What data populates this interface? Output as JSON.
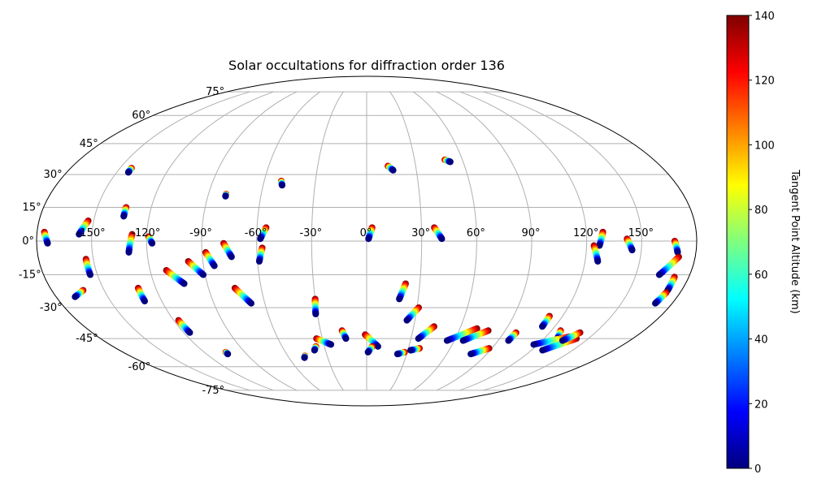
{
  "chart_data": {
    "type": "scatter",
    "projection": "mollweide",
    "title": "Solar occultations for diffraction order 136",
    "lon_tick_labels": [
      "-150°",
      "-120°",
      "-90°",
      "-60°",
      "-30°",
      "0°",
      "30°",
      "60°",
      "90°",
      "120°",
      "150°"
    ],
    "lon_ticks": [
      -150,
      -120,
      -90,
      -60,
      -30,
      0,
      30,
      60,
      90,
      120,
      150
    ],
    "lat_tick_labels": [
      "-75°",
      "-60°",
      "-45°",
      "-30°",
      "-15°",
      "0°",
      "15°",
      "30°",
      "45°",
      "60°",
      "75°"
    ],
    "lat_ticks": [
      -75,
      -60,
      -45,
      -30,
      -15,
      0,
      15,
      30,
      45,
      60,
      75
    ],
    "grid": true,
    "colorbar": {
      "label": "Tangent Point Altitude (km)",
      "range": [
        0,
        140
      ],
      "ticks": [
        0,
        20,
        40,
        60,
        80,
        100,
        120,
        140
      ],
      "tick_labels": [
        "0",
        "20",
        "40",
        "60",
        "80",
        "100",
        "120",
        "140"
      ],
      "colormap": "jet"
    },
    "occultation_tracks": [
      {
        "start": [
          -176,
          4
        ],
        "end": [
          -174,
          -1
        ]
      },
      {
        "start": [
          -153,
          9
        ],
        "end": [
          -157,
          3
        ]
      },
      {
        "start": [
          -143,
          33
        ],
        "end": [
          -143,
          31
        ]
      },
      {
        "start": [
          -162,
          -22
        ],
        "end": [
          -169,
          -25
        ]
      },
      {
        "start": [
          -154,
          -8
        ],
        "end": [
          -154,
          -15
        ]
      },
      {
        "start": [
          -130,
          -21
        ],
        "end": [
          -130,
          -27
        ]
      },
      {
        "start": [
          -134,
          15
        ],
        "end": [
          -134,
          11
        ]
      },
      {
        "start": [
          -128,
          3
        ],
        "end": [
          -130,
          -5
        ]
      },
      {
        "start": [
          -119,
          2
        ],
        "end": [
          -117,
          -1
        ]
      },
      {
        "start": [
          -117,
          -36
        ],
        "end": [
          -116,
          -42
        ]
      },
      {
        "start": [
          -111,
          -13
        ],
        "end": [
          -103,
          -19
        ]
      },
      {
        "start": [
          -104,
          -52
        ],
        "end": [
          -104,
          -53
        ]
      },
      {
        "start": [
          -98,
          -9
        ],
        "end": [
          -91,
          -15
        ]
      },
      {
        "start": [
          -88,
          -5
        ],
        "end": [
          -84,
          -11
        ]
      },
      {
        "start": [
          -78,
          -1
        ],
        "end": [
          -74,
          -7
        ]
      },
      {
        "start": [
          -80,
          21
        ],
        "end": [
          -80,
          20
        ]
      },
      {
        "start": [
          -75,
          -21
        ],
        "end": [
          -68,
          -28
        ]
      },
      {
        "start": [
          -55,
          6
        ],
        "end": [
          -58,
          1
        ]
      },
      {
        "start": [
          -57,
          -3
        ],
        "end": [
          -59,
          -9
        ]
      },
      {
        "start": [
          -50,
          27
        ],
        "end": [
          -49,
          25
        ]
      },
      {
        "start": [
          -47,
          -54
        ],
        "end": [
          -48,
          -55
        ]
      },
      {
        "start": [
          -30,
          -26
        ],
        "end": [
          -31,
          -33
        ]
      },
      {
        "start": [
          -34,
          -45
        ],
        "end": [
          -25,
          -48
        ]
      },
      {
        "start": [
          -36,
          -49
        ],
        "end": [
          -38,
          -51
        ]
      },
      {
        "start": [
          -16,
          -41
        ],
        "end": [
          -14,
          -45
        ]
      },
      {
        "start": [
          -1,
          -43
        ],
        "end": [
          8,
          -49
        ]
      },
      {
        "start": [
          4,
          -49
        ],
        "end": [
          1,
          -52
        ]
      },
      {
        "start": [
          3,
          6
        ],
        "end": [
          1,
          1
        ]
      },
      {
        "start": [
          13,
          34
        ],
        "end": [
          16,
          32
        ]
      },
      {
        "start": [
          22,
          -19
        ],
        "end": [
          19,
          -26
        ]
      },
      {
        "start": [
          31,
          -30
        ],
        "end": [
          25,
          -36
        ]
      },
      {
        "start": [
          28,
          -52
        ],
        "end": [
          23,
          -53
        ]
      },
      {
        "start": [
          43,
          -39
        ],
        "end": [
          35,
          -45
        ]
      },
      {
        "start": [
          38,
          -50
        ],
        "end": [
          32,
          -51
        ]
      },
      {
        "start": [
          37,
          6
        ],
        "end": [
          41,
          1
        ]
      },
      {
        "start": [
          49,
          37
        ],
        "end": [
          52,
          36
        ]
      },
      {
        "start": [
          71,
          -40
        ],
        "end": [
          55,
          -46
        ]
      },
      {
        "start": [
          79,
          -41
        ],
        "end": [
          66,
          -46
        ]
      },
      {
        "start": [
          88,
          -50
        ],
        "end": [
          78,
          -53
        ]
      },
      {
        "start": [
          98,
          -42
        ],
        "end": [
          97,
          -46
        ]
      },
      {
        "start": [
          112,
          -34
        ],
        "end": [
          112,
          -39
        ]
      },
      {
        "start": [
          126,
          -41
        ],
        "end": [
          129,
          -45
        ]
      },
      {
        "start": [
          136,
          -44
        ],
        "end": [
          117,
          -48
        ]
      },
      {
        "start": [
          142,
          -45
        ],
        "end": [
          128,
          -51
        ]
      },
      {
        "start": [
          140,
          -42
        ],
        "end": [
          134,
          -46
        ]
      },
      {
        "start": [
          129,
          4
        ],
        "end": [
          127,
          -2
        ]
      },
      {
        "start": [
          124,
          -2
        ],
        "end": [
          127,
          -9
        ]
      },
      {
        "start": [
          142,
          1
        ],
        "end": [
          145,
          -4
        ]
      },
      {
        "start": [
          168,
          0
        ],
        "end": [
          170,
          -5
        ]
      },
      {
        "start": [
          171,
          -7
        ],
        "end": [
          163,
          -15
        ]
      },
      {
        "start": [
          172,
          -16
        ],
        "end": [
          172,
          -22
        ]
      },
      {
        "start": [
          172,
          -23
        ],
        "end": [
          170,
          -28
        ]
      }
    ]
  }
}
